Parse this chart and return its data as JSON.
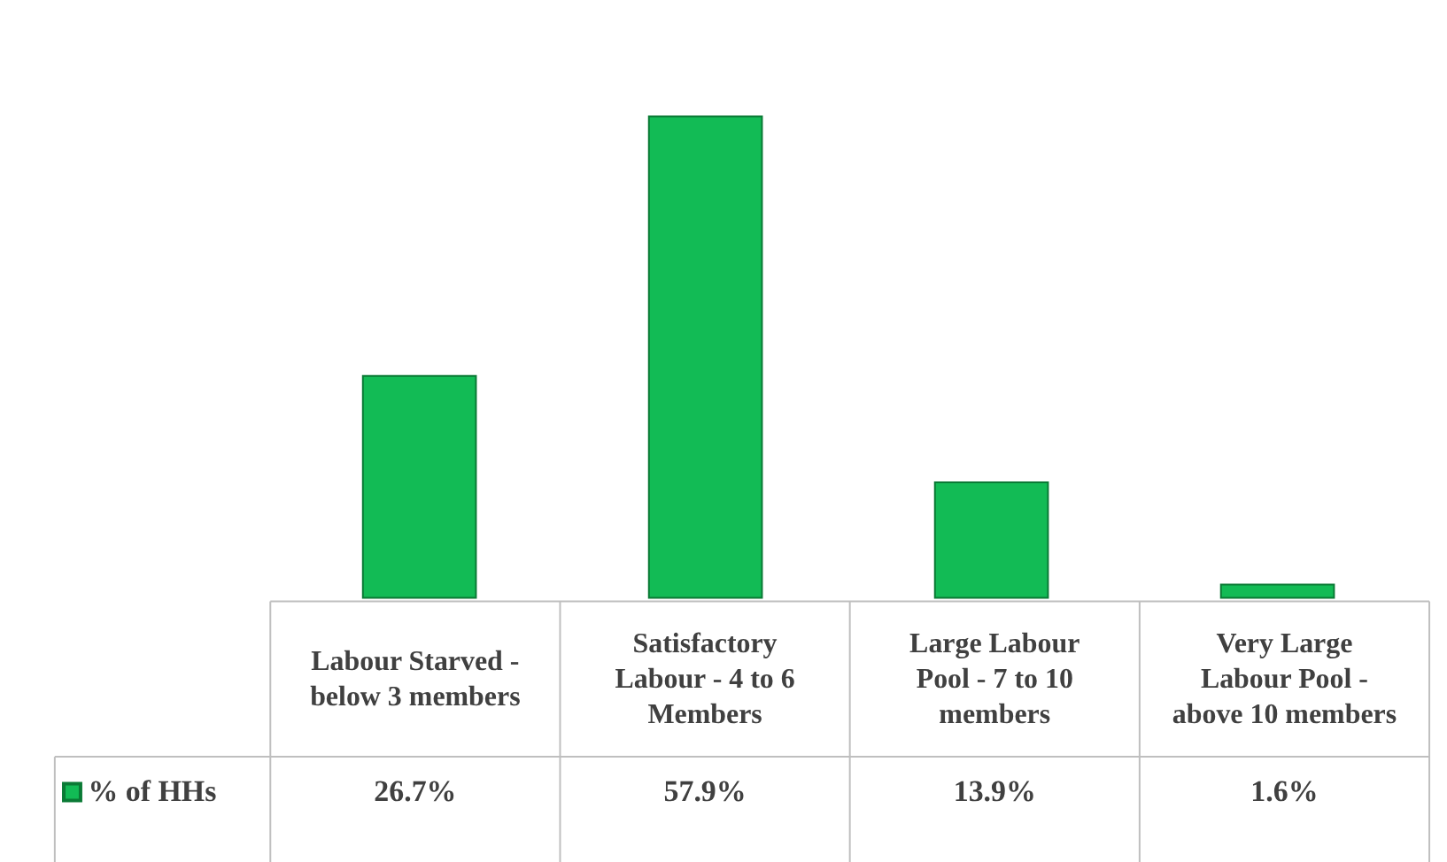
{
  "chart_data": {
    "type": "bar",
    "categories": [
      "Labour Starved - below 3 members",
      "Satisfactory Labour - 4 to 6 Members",
      "Large Labour Pool - 7 to 10 members",
      "Very Large Labour Pool - above 10 members"
    ],
    "series": [
      {
        "name": "% of HHs",
        "color": "#12bb55",
        "values": [
          26.7,
          57.9,
          13.9,
          1.6
        ],
        "value_labels": [
          "26.7%",
          "57.9%",
          "13.9%",
          "1.6%"
        ]
      }
    ],
    "legend": "bottom left",
    "grid": false
  }
}
